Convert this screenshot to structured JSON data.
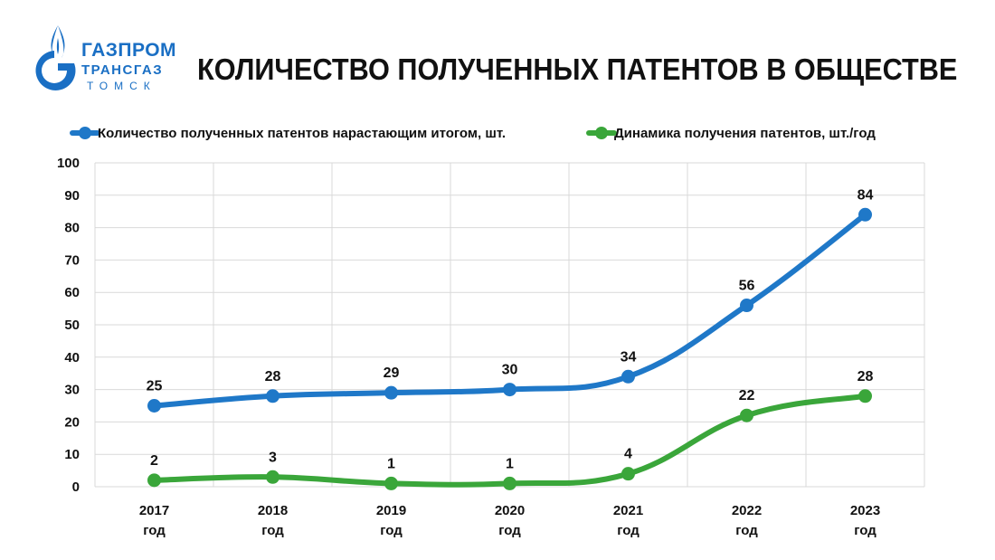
{
  "header": {
    "logo": {
      "line1": "ГАЗПРОМ",
      "line2": "ТРАНСГАЗ",
      "line3": "ТОМСК",
      "brand_color": "#1a6fc4"
    },
    "title": "КОЛИЧЕСТВО ПОЛУЧЕННЫХ ПАТЕНТОВ В ОБЩЕСТВЕ"
  },
  "chart_data": {
    "type": "line",
    "categories": [
      [
        "2017",
        "год"
      ],
      [
        "2018",
        "год"
      ],
      [
        "2019",
        "год"
      ],
      [
        "2020",
        "год"
      ],
      [
        "2021",
        "год"
      ],
      [
        "2022",
        "год"
      ],
      [
        "2023",
        "год"
      ]
    ],
    "series": [
      {
        "name": "Количество полученных патентов нарастающим итогом, шт.",
        "color": "#1f78c8",
        "values": [
          25,
          28,
          29,
          30,
          34,
          56,
          84
        ]
      },
      {
        "name": "Динамика получения патентов, шт./год",
        "color": "#3aa63a",
        "values": [
          2,
          3,
          1,
          1,
          4,
          22,
          28
        ]
      }
    ],
    "ylim": [
      0,
      100
    ],
    "yticks": [
      0,
      10,
      20,
      30,
      40,
      50,
      60,
      70,
      80,
      90,
      100
    ],
    "grid": true,
    "legend_position": "top",
    "smooth": true,
    "data_labels": true
  }
}
